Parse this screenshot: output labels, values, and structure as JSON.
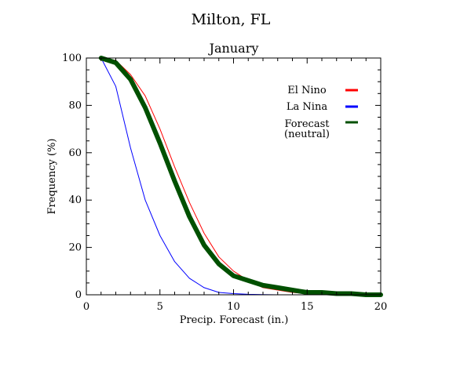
{
  "chart_data": {
    "type": "line",
    "title": "Milton, FL",
    "subtitle": "January",
    "xlabel": "Precip. Forecast (in.)",
    "ylabel": "Frequency (%)",
    "xlim": [
      0,
      20
    ],
    "ylim": [
      0,
      100
    ],
    "x_major_ticks": [
      0,
      5,
      10,
      15,
      20
    ],
    "y_major_ticks": [
      0,
      20,
      40,
      60,
      80,
      100
    ],
    "grid": false,
    "legend_position": "top-right",
    "series": [
      {
        "name": "El Nino",
        "color": "#ff0000",
        "x": [
          1,
          2,
          3,
          4,
          5,
          6,
          7,
          8,
          9,
          10,
          11,
          12,
          13,
          14,
          15,
          16,
          17,
          18,
          19,
          20
        ],
        "y": [
          100,
          99,
          93,
          84,
          70,
          54,
          39,
          26,
          16,
          10,
          6,
          3,
          2,
          1,
          0.5,
          0.3,
          0.2,
          0.1,
          0,
          0
        ]
      },
      {
        "name": "La Nina",
        "color": "#0000ff",
        "x": [
          1,
          2,
          3,
          4,
          5,
          6,
          7,
          8,
          9,
          10,
          11,
          12,
          13,
          14,
          15,
          16,
          17,
          18,
          19,
          20
        ],
        "y": [
          100,
          88,
          62,
          40,
          25,
          14,
          7,
          3,
          1,
          0.5,
          0.2,
          0.1,
          0,
          0,
          0,
          0,
          0,
          0,
          0,
          0
        ]
      },
      {
        "name": "Forecast\n(neutral)",
        "color": "#005000",
        "x": [
          1,
          2,
          3,
          4,
          5,
          6,
          7,
          8,
          9,
          10,
          11,
          12,
          13,
          14,
          15,
          16,
          17,
          18,
          19,
          20
        ],
        "y": [
          100,
          98,
          91,
          79,
          64,
          48,
          33,
          21,
          13,
          8,
          6,
          4,
          3,
          2,
          1,
          1,
          0.5,
          0.5,
          0,
          0
        ]
      }
    ]
  }
}
